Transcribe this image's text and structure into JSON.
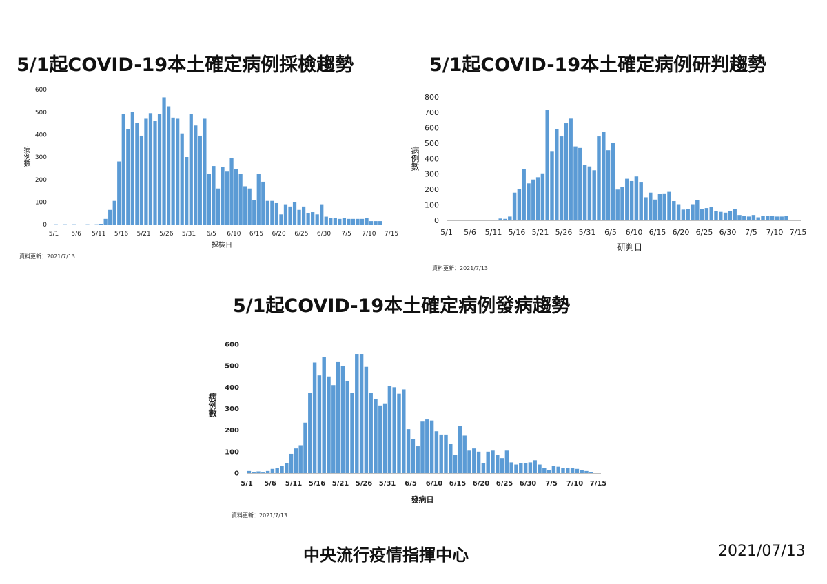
{
  "chart_data": [
    {
      "type": "bar",
      "title": "5/1起COVID-19本土確定病例採檢趨勢",
      "xlabel": "採檢日",
      "ylabel": "病例數",
      "ylim": [
        0,
        600
      ],
      "yticks": [
        "0",
        "100",
        "200",
        "300",
        "400",
        "500",
        "600"
      ],
      "xticks": [
        "5/1",
        "5/6",
        "5/11",
        "5/16",
        "5/21",
        "5/26",
        "5/31",
        "6/5",
        "6/10",
        "6/15",
        "6/20",
        "6/25",
        "6/30",
        "7/5",
        "7/10",
        "7/15"
      ],
      "grid": false,
      "color": "#5b9bd5",
      "categories": [
        "5/1",
        "5/2",
        "5/3",
        "5/4",
        "5/5",
        "5/6",
        "5/7",
        "5/8",
        "5/9",
        "5/10",
        "5/11",
        "5/12",
        "5/13",
        "5/14",
        "5/15",
        "5/16",
        "5/17",
        "5/18",
        "5/19",
        "5/20",
        "5/21",
        "5/22",
        "5/23",
        "5/24",
        "5/25",
        "5/26",
        "5/27",
        "5/28",
        "5/29",
        "5/30",
        "5/31",
        "6/1",
        "6/2",
        "6/3",
        "6/4",
        "6/5",
        "6/6",
        "6/7",
        "6/8",
        "6/9",
        "6/10",
        "6/11",
        "6/12",
        "6/13",
        "6/14",
        "6/15",
        "6/16",
        "6/17",
        "6/18",
        "6/19",
        "6/20",
        "6/21",
        "6/22",
        "6/23",
        "6/24",
        "6/25",
        "6/26",
        "6/27",
        "6/28",
        "6/29",
        "6/30",
        "7/1",
        "7/2",
        "7/3",
        "7/4",
        "7/5",
        "7/6",
        "7/7",
        "7/8",
        "7/9",
        "7/10",
        "7/11",
        "7/12"
      ],
      "values": [
        1,
        0,
        1,
        0,
        1,
        0,
        0,
        1,
        0,
        1,
        3,
        25,
        65,
        105,
        280,
        490,
        425,
        500,
        450,
        395,
        470,
        495,
        460,
        490,
        565,
        525,
        475,
        470,
        405,
        300,
        490,
        440,
        395,
        470,
        225,
        260,
        160,
        255,
        235,
        295,
        245,
        225,
        170,
        160,
        110,
        225,
        190,
        105,
        105,
        95,
        45,
        90,
        80,
        100,
        65,
        80,
        50,
        55,
        45,
        90,
        35,
        30,
        30,
        25,
        30,
        25,
        25,
        25,
        25,
        30,
        15,
        15,
        15
      ],
      "footnote": "資料更新：2021/7/13"
    },
    {
      "type": "bar",
      "title": "5/1起COVID-19本土確定病例研判趨勢",
      "xlabel": "研判日",
      "ylabel": "病例數",
      "ylim": [
        0,
        800
      ],
      "yticks": [
        "0",
        "100",
        "200",
        "300",
        "400",
        "500",
        "600",
        "700",
        "800"
      ],
      "xticks": [
        "5/1",
        "5/6",
        "5/11",
        "5/16",
        "5/21",
        "5/26",
        "5/31",
        "6/5",
        "6/10",
        "6/15",
        "6/20",
        "6/25",
        "6/30",
        "7/5",
        "7/10",
        "7/15"
      ],
      "grid": false,
      "color": "#5b9bd5",
      "categories": [
        "5/1",
        "5/2",
        "5/3",
        "5/4",
        "5/5",
        "5/6",
        "5/7",
        "5/8",
        "5/9",
        "5/10",
        "5/11",
        "5/12",
        "5/13",
        "5/14",
        "5/15",
        "5/16",
        "5/17",
        "5/18",
        "5/19",
        "5/20",
        "5/21",
        "5/22",
        "5/23",
        "5/24",
        "5/25",
        "5/26",
        "5/27",
        "5/28",
        "5/29",
        "5/30",
        "5/31",
        "6/1",
        "6/2",
        "6/3",
        "6/4",
        "6/5",
        "6/6",
        "6/7",
        "6/8",
        "6/9",
        "6/10",
        "6/11",
        "6/12",
        "6/13",
        "6/14",
        "6/15",
        "6/16",
        "6/17",
        "6/18",
        "6/19",
        "6/20",
        "6/21",
        "6/22",
        "6/23",
        "6/24",
        "6/25",
        "6/26",
        "6/27",
        "6/28",
        "6/29",
        "6/30",
        "7/1",
        "7/2",
        "7/3",
        "7/4",
        "7/5",
        "7/6",
        "7/7",
        "7/8",
        "7/9",
        "7/10",
        "7/11",
        "7/12"
      ],
      "values": [
        3,
        3,
        3,
        1,
        2,
        3,
        1,
        4,
        2,
        3,
        4,
        12,
        10,
        25,
        180,
        205,
        335,
        240,
        265,
        280,
        305,
        715,
        450,
        590,
        545,
        630,
        660,
        480,
        470,
        360,
        350,
        325,
        545,
        575,
        455,
        505,
        200,
        215,
        270,
        255,
        285,
        250,
        150,
        180,
        135,
        170,
        175,
        185,
        125,
        105,
        70,
        75,
        105,
        130,
        75,
        80,
        85,
        60,
        55,
        50,
        60,
        75,
        35,
        30,
        25,
        35,
        20,
        30,
        30,
        30,
        25,
        25,
        30
      ],
      "footnote": "資料更新：2021/7/13"
    },
    {
      "type": "bar",
      "title": "5/1起COVID-19本土確定病例發病趨勢",
      "xlabel": "發病日",
      "ylabel": "病例數",
      "ylim": [
        0,
        600
      ],
      "yticks": [
        "0",
        "100",
        "200",
        "300",
        "400",
        "500",
        "600"
      ],
      "xticks": [
        "5/1",
        "5/6",
        "5/11",
        "5/16",
        "5/21",
        "5/26",
        "5/31",
        "6/5",
        "6/10",
        "6/15",
        "6/20",
        "6/25",
        "6/30",
        "7/5",
        "7/10",
        "7/15"
      ],
      "grid": false,
      "color": "#5b9bd5",
      "categories": [
        "5/1",
        "5/2",
        "5/3",
        "5/4",
        "5/5",
        "5/6",
        "5/7",
        "5/8",
        "5/9",
        "5/10",
        "5/11",
        "5/12",
        "5/13",
        "5/14",
        "5/15",
        "5/16",
        "5/17",
        "5/18",
        "5/19",
        "5/20",
        "5/21",
        "5/22",
        "5/23",
        "5/24",
        "5/25",
        "5/26",
        "5/27",
        "5/28",
        "5/29",
        "5/30",
        "5/31",
        "6/1",
        "6/2",
        "6/3",
        "6/4",
        "6/5",
        "6/6",
        "6/7",
        "6/8",
        "6/9",
        "6/10",
        "6/11",
        "6/12",
        "6/13",
        "6/14",
        "6/15",
        "6/16",
        "6/17",
        "6/18",
        "6/19",
        "6/20",
        "6/21",
        "6/22",
        "6/23",
        "6/24",
        "6/25",
        "6/26",
        "6/27",
        "6/28",
        "6/29",
        "6/30",
        "7/1",
        "7/2",
        "7/3",
        "7/4",
        "7/5",
        "7/6",
        "7/7",
        "7/8",
        "7/9",
        "7/10",
        "7/11",
        "7/12",
        "7/13"
      ],
      "values": [
        10,
        5,
        8,
        3,
        10,
        20,
        25,
        35,
        45,
        90,
        115,
        130,
        235,
        375,
        515,
        455,
        540,
        450,
        410,
        520,
        500,
        430,
        375,
        555,
        555,
        495,
        375,
        345,
        315,
        325,
        405,
        400,
        370,
        390,
        205,
        160,
        125,
        240,
        250,
        245,
        195,
        180,
        180,
        135,
        85,
        220,
        175,
        105,
        115,
        100,
        45,
        100,
        105,
        85,
        70,
        105,
        50,
        40,
        45,
        45,
        50,
        60,
        40,
        25,
        15,
        35,
        30,
        25,
        25,
        25,
        20,
        15,
        10,
        5
      ],
      "footnote": "資料更新：2021/7/13"
    }
  ],
  "footer": {
    "org": "中央流行疫情指揮中心",
    "date": "2021/07/13"
  }
}
